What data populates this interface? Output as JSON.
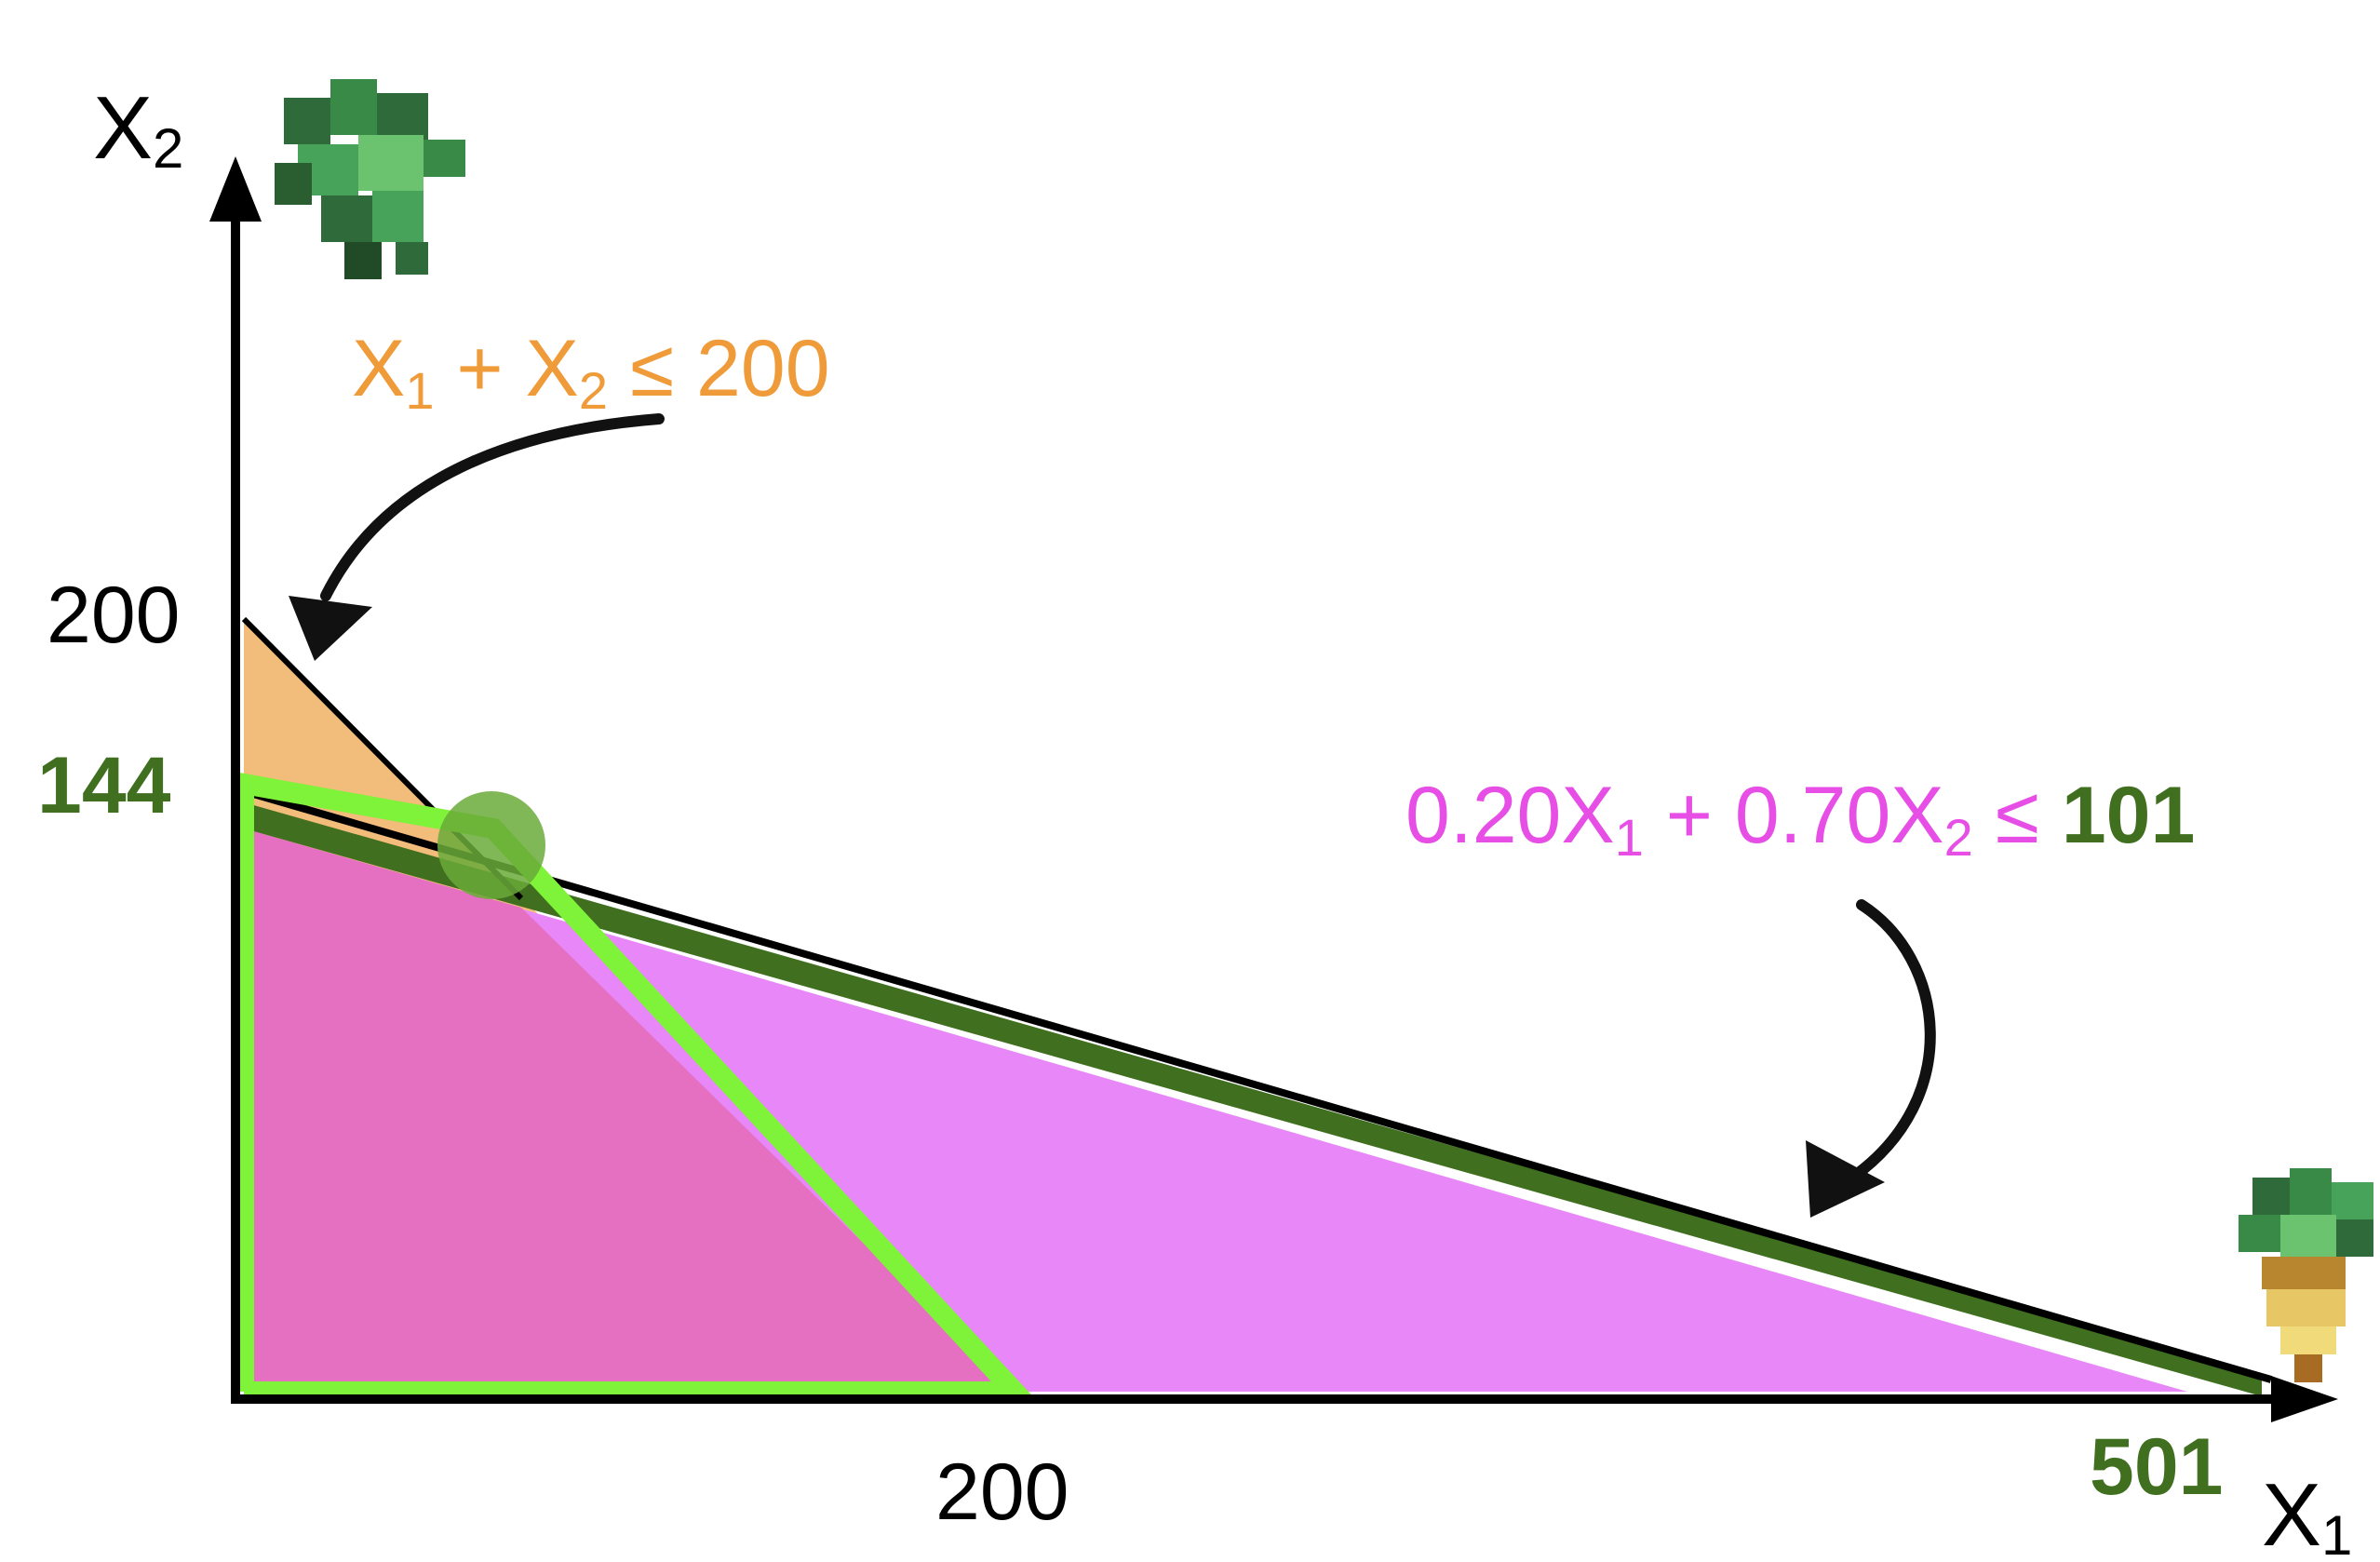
{
  "axes": {
    "x_label": "X",
    "x_sub": "1",
    "y_label": "X",
    "y_sub": "2",
    "x_tick": "200",
    "y_tick": "200"
  },
  "constraint_orange": {
    "x_text": "X",
    "sub1": "1",
    "plus": " + X",
    "sub2": "2",
    "rhs": " ≤ 200",
    "color": "#ef9b3a"
  },
  "constraint_pink": {
    "lead": "0.20X",
    "sub1": "1",
    "mid": " + 0.70X",
    "sub2": "2",
    "op": " ≤ ",
    "rhs": "101",
    "color": "#e64ee6",
    "rhs_color": "#3f6f1f"
  },
  "intercepts": {
    "y_green": "144",
    "x_green": "501",
    "color": "#3f6f1f"
  },
  "colors": {
    "orange_fill": "#f2bc7a",
    "pink_fill": "#e887f8",
    "overlap_fill": "#e570c2",
    "feasible_outline": "#7ff23a",
    "dark_band": "#3f6f1f",
    "optimum_dot": "#6aaa3a"
  },
  "icons": {
    "y_axis_icon": "leafy-crop-icon",
    "x_axis_icon": "root-vegetable-icon"
  }
}
